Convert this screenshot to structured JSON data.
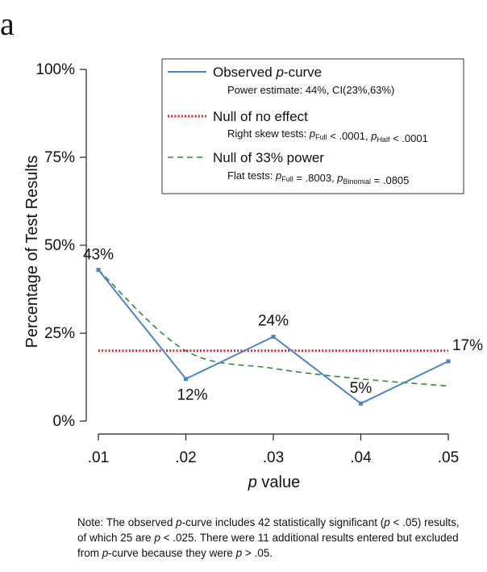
{
  "panel_label": "a",
  "chart_data": {
    "type": "line",
    "xlabel_prefix": "p",
    "xlabel_suffix": " value",
    "ylabel": "Percentage of Test Results",
    "x": [
      0.01,
      0.02,
      0.03,
      0.04,
      0.05
    ],
    "x_tick_labels": [
      ".01",
      ".02",
      ".03",
      ".04",
      ".05"
    ],
    "y_ticks": [
      0,
      25,
      50,
      75,
      100
    ],
    "y_tick_labels": [
      "0%",
      "25%",
      "50%",
      "75%",
      "100%"
    ],
    "ylim": [
      0,
      100
    ],
    "xlim": [
      0.01,
      0.05
    ],
    "series": [
      {
        "name": "Observed p-curve",
        "values": [
          43,
          12,
          24,
          5,
          17
        ],
        "point_labels": [
          "43%",
          "12%",
          "24%",
          "5%",
          "17%"
        ],
        "color": "#4a86c8",
        "style": "solid"
      },
      {
        "name": "Null of no effect",
        "values": [
          20,
          20,
          20,
          20,
          20
        ],
        "color": "#e02020",
        "style": "dotted"
      },
      {
        "name": "Null of 33% power",
        "values": [
          43,
          20,
          15,
          12,
          10
        ],
        "color": "#2e8b3a",
        "style": "dashed"
      }
    ],
    "legend": [
      {
        "main_prefix": "Observed ",
        "main_italic": "p",
        "main_suffix": "-curve",
        "sub": "Power estimate: 44%, CI(23%,63%)"
      },
      {
        "main_prefix": "Null of no effect",
        "main_italic": "",
        "main_suffix": "",
        "sub_parts": [
          "Right skew tests: ",
          "p",
          "Full",
          " < .0001,  ",
          "p",
          "Half",
          " < .0001"
        ]
      },
      {
        "main_prefix": "Null of 33% power",
        "main_italic": "",
        "main_suffix": "",
        "sub_parts": [
          "Flat tests: ",
          "p",
          "Full",
          " = .8003, ",
          "p",
          "Binomial",
          " = .0805"
        ]
      }
    ],
    "legend_placement": "top-right",
    "grid": false
  },
  "note": {
    "parts": [
      "Note: The observed ",
      "p",
      "-curve includes 42 statistically significant (",
      "p",
      " < .05) results, of which 25 are ",
      "p",
      " < .025. There were 11 additional results entered but excluded from ",
      "p",
      "-curve because they were ",
      "p",
      " > .05."
    ]
  }
}
